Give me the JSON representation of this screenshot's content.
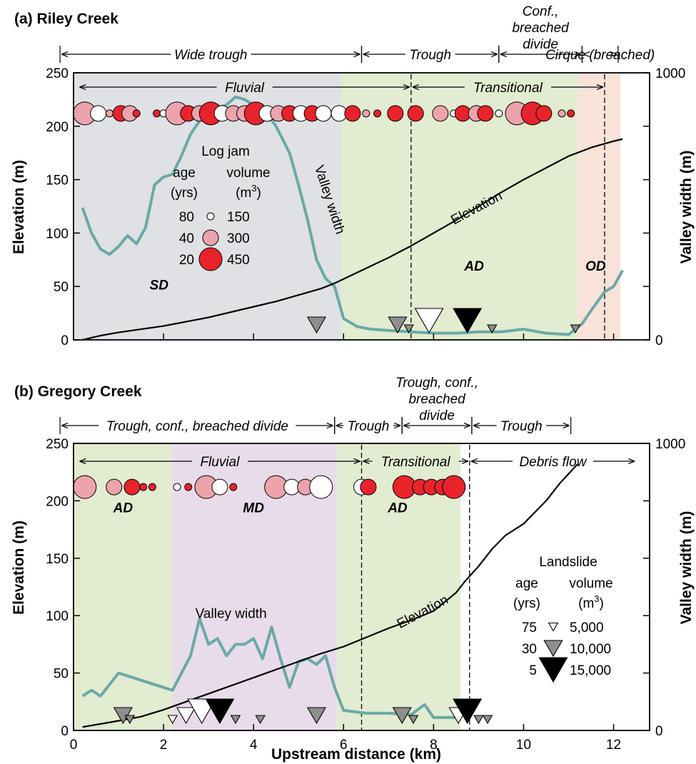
{
  "chart_data": [
    {
      "type": "line",
      "panel_label": "(a) Riley Creek",
      "xlabel": "Upstream distance (km)",
      "ylabel": "Elevation (m)",
      "y2label": "Valley width (m)",
      "xlim": [
        0,
        12.8
      ],
      "ylim": [
        0,
        250
      ],
      "y2lim": [
        0,
        1000
      ],
      "x_ticks": [
        0,
        2,
        4,
        6,
        8,
        10,
        12
      ],
      "y_ticks": [
        0,
        50,
        100,
        150,
        200,
        250
      ],
      "y2_ticks": [
        0,
        1000
      ],
      "zones": [
        {
          "label": "SD",
          "x0": 0,
          "x1": 5.95,
          "color": "#dfe1e4",
          "label_x": 1.9,
          "label_y": 47
        },
        {
          "label": "AD",
          "x0": 5.95,
          "x1": 11.2,
          "color": "#e2ecd0",
          "label_x": 8.9,
          "label_y": 65
        },
        {
          "label": "OD",
          "x0": 11.2,
          "x1": 12.15,
          "color": "#f9e2d8",
          "label_x": 11.6,
          "label_y": 65
        }
      ],
      "dashed_lines": [
        7.5,
        11.8
      ],
      "morphology_segments": [
        {
          "label": "Wide trough",
          "x0": -0.3,
          "x1": 6.4
        },
        {
          "label": "Trough",
          "x0": 6.4,
          "x1": 9.45
        },
        {
          "label": "Conf., breached divide",
          "x0": 9.45,
          "x1": 11.3
        },
        {
          "label": "Cirque (breached)",
          "x0": 11.3,
          "x1": 12.1
        }
      ],
      "process_segments": [
        {
          "label": "Fluvial",
          "x0": 0.1,
          "x1": 7.5
        },
        {
          "label": "Transitional",
          "x0": 7.5,
          "x1": 11.8
        }
      ],
      "series": [
        {
          "name": "Elevation",
          "axis": "left",
          "color": "#000000",
          "x": [
            0.2,
            0.6,
            1.0,
            1.5,
            2.0,
            2.5,
            3.0,
            3.5,
            4.0,
            4.5,
            5.0,
            5.5,
            5.8,
            6.0,
            6.5,
            7.0,
            7.5,
            8.0,
            8.5,
            9.0,
            9.5,
            10.0,
            10.5,
            11.0,
            11.5,
            12.0,
            12.2
          ],
          "y": [
            0,
            4,
            7,
            10,
            13,
            17,
            21,
            26,
            31,
            36,
            42,
            48,
            53,
            57,
            67,
            77,
            88,
            100,
            112,
            125,
            138,
            150,
            161,
            172,
            180,
            186,
            188
          ]
        },
        {
          "name": "Valley width",
          "axis": "right",
          "color": "#6aa9a8",
          "x": [
            0.2,
            0.4,
            0.6,
            0.8,
            1.0,
            1.2,
            1.4,
            1.6,
            1.8,
            2.0,
            2.2,
            2.4,
            2.6,
            2.8,
            3.0,
            3.2,
            3.4,
            3.6,
            3.8,
            4.0,
            4.2,
            4.5,
            4.8,
            5.0,
            5.2,
            5.4,
            5.6,
            5.8,
            6.0,
            6.3,
            6.6,
            7.0,
            7.5,
            8.0,
            8.5,
            9.0,
            9.5,
            10.0,
            10.5,
            11.0,
            11.3,
            11.5,
            11.8,
            12.0,
            12.2
          ],
          "y": [
            495,
            400,
            340,
            320,
            350,
            390,
            360,
            420,
            580,
            610,
            620,
            690,
            770,
            820,
            850,
            870,
            880,
            910,
            900,
            880,
            870,
            800,
            700,
            580,
            450,
            300,
            230,
            200,
            80,
            50,
            40,
            35,
            30,
            25,
            25,
            30,
            30,
            40,
            25,
            20,
            60,
            110,
            180,
            200,
            260
          ]
        }
      ],
      "log_jams": [
        {
          "x": 0.25,
          "age": 40,
          "volume": 450
        },
        {
          "x": 0.55,
          "age": 80,
          "volume": 300
        },
        {
          "x": 0.8,
          "age": 40,
          "volume": 150
        },
        {
          "x": 1.05,
          "age": 20,
          "volume": 300
        },
        {
          "x": 1.25,
          "age": 40,
          "volume": 300
        },
        {
          "x": 1.4,
          "age": 20,
          "volume": 150
        },
        {
          "x": 1.85,
          "age": 20,
          "volume": 150
        },
        {
          "x": 2.0,
          "age": 80,
          "volume": 150
        },
        {
          "x": 2.3,
          "age": 40,
          "volume": 450
        },
        {
          "x": 2.55,
          "age": 20,
          "volume": 300
        },
        {
          "x": 2.8,
          "age": 40,
          "volume": 300
        },
        {
          "x": 3.05,
          "age": 20,
          "volume": 450
        },
        {
          "x": 3.3,
          "age": 80,
          "volume": 300
        },
        {
          "x": 3.55,
          "age": 40,
          "volume": 300
        },
        {
          "x": 3.8,
          "age": 40,
          "volume": 300
        },
        {
          "x": 4.05,
          "age": 20,
          "volume": 450
        },
        {
          "x": 4.3,
          "age": 80,
          "volume": 300
        },
        {
          "x": 4.55,
          "age": 40,
          "volume": 300
        },
        {
          "x": 4.8,
          "age": 20,
          "volume": 300
        },
        {
          "x": 5.05,
          "age": 80,
          "volume": 300
        },
        {
          "x": 5.3,
          "age": 20,
          "volume": 300
        },
        {
          "x": 5.55,
          "age": 80,
          "volume": 300
        },
        {
          "x": 5.9,
          "age": 80,
          "volume": 300
        },
        {
          "x": 6.2,
          "age": 20,
          "volume": 300
        },
        {
          "x": 6.5,
          "age": 40,
          "volume": 150
        },
        {
          "x": 6.75,
          "age": 20,
          "volume": 150
        },
        {
          "x": 7.15,
          "age": 20,
          "volume": 300
        },
        {
          "x": 7.6,
          "age": 20,
          "volume": 300
        },
        {
          "x": 8.15,
          "age": 40,
          "volume": 300
        },
        {
          "x": 8.45,
          "age": 80,
          "volume": 150
        },
        {
          "x": 8.65,
          "age": 20,
          "volume": 300
        },
        {
          "x": 8.95,
          "age": 40,
          "volume": 300
        },
        {
          "x": 9.15,
          "age": 20,
          "volume": 300
        },
        {
          "x": 9.45,
          "age": 80,
          "volume": 150
        },
        {
          "x": 9.85,
          "age": 40,
          "volume": 450
        },
        {
          "x": 10.2,
          "age": 20,
          "volume": 450
        },
        {
          "x": 10.45,
          "age": 20,
          "volume": 300
        },
        {
          "x": 10.85,
          "age": 40,
          "volume": 150
        },
        {
          "x": 11.05,
          "age": 20,
          "volume": 150
        }
      ],
      "landslides": [
        {
          "x": 5.4,
          "age": 30,
          "volume": 10000
        },
        {
          "x": 7.2,
          "age": 30,
          "volume": 10000
        },
        {
          "x": 7.45,
          "age": 30,
          "volume": 5000
        },
        {
          "x": 7.9,
          "age": 75,
          "volume": 15000
        },
        {
          "x": 8.75,
          "age": 5,
          "volume": 15000
        },
        {
          "x": 9.3,
          "age": 30,
          "volume": 5000
        },
        {
          "x": 11.15,
          "age": 30,
          "volume": 5000
        }
      ],
      "curve_labels": [
        {
          "text": "Elevation",
          "x": 9.0,
          "y": 120,
          "angle": -28
        },
        {
          "text": "Valley width",
          "x": 5.6,
          "y": 130,
          "angle": 72
        }
      ],
      "legend": {
        "title_line1": "Log jam",
        "age_header": "age",
        "age_unit": "(yrs)",
        "volume_header": "volume",
        "volume_unit_base": "(m",
        "volume_unit_sup": "3",
        "volume_unit_end": ")",
        "rows": [
          {
            "age": "80",
            "volume": "150"
          },
          {
            "age": "40",
            "volume": "300"
          },
          {
            "age": "20",
            "volume": "450"
          }
        ],
        "position": "upper-left"
      }
    },
    {
      "type": "line",
      "panel_label": "(b) Gregory Creek",
      "xlabel": "Upstream distance (km)",
      "ylabel": "Elevation (m)",
      "y2label": "Valley width (m)",
      "xlim": [
        0,
        12.8
      ],
      "ylim": [
        0,
        250
      ],
      "y2lim": [
        0,
        1000
      ],
      "x_ticks": [
        0,
        2,
        4,
        6,
        8,
        10,
        12
      ],
      "y_ticks": [
        0,
        50,
        100,
        150,
        200,
        250
      ],
      "y2_ticks": [
        0,
        1000
      ],
      "zones": [
        {
          "label": "AD",
          "x0": 0,
          "x1": 2.2,
          "color": "#e2ecd0",
          "label_x": 1.1,
          "label_y": 190
        },
        {
          "label": "MD",
          "x0": 2.2,
          "x1": 5.85,
          "color": "#e9dcea",
          "label_x": 4.0,
          "label_y": 190
        },
        {
          "label": "AD",
          "x0": 5.85,
          "x1": 8.6,
          "color": "#e2ecd0",
          "label_x": 7.2,
          "label_y": 190
        }
      ],
      "dashed_lines": [
        6.4,
        8.8
      ],
      "morphology_segments": [
        {
          "label": "Trough, conf., breached divide",
          "x0": -0.3,
          "x1": 5.8
        },
        {
          "label": "Trough",
          "x0": 5.8,
          "x1": 7.3
        },
        {
          "label": "Trough, conf., breached divide",
          "x0": 7.3,
          "x1": 8.85
        },
        {
          "label": "Trough",
          "x0": 8.85,
          "x1": 11.05
        }
      ],
      "process_segments": [
        {
          "label": "Fluvial",
          "x0": 0.1,
          "x1": 6.4
        },
        {
          "label": "Transitional",
          "x0": 6.4,
          "x1": 8.8
        },
        {
          "label": "Debris flow",
          "x0": 8.8,
          "x1": 12.5
        }
      ],
      "series": [
        {
          "name": "Elevation",
          "axis": "left",
          "color": "#000000",
          "x": [
            0.2,
            0.8,
            1.5,
            2.0,
            2.5,
            3.0,
            3.5,
            4.0,
            4.5,
            5.0,
            5.5,
            6.0,
            6.5,
            7.0,
            7.5,
            8.0,
            8.5,
            8.7,
            9.0,
            9.3,
            9.6,
            10.0,
            10.5,
            10.8,
            11.2
          ],
          "y": [
            3,
            7,
            12,
            18,
            25,
            32,
            39,
            46,
            53,
            60,
            67,
            73,
            81,
            89,
            96,
            104,
            120,
            130,
            143,
            158,
            170,
            180,
            200,
            215,
            232
          ]
        },
        {
          "name": "Valley width",
          "axis": "right",
          "color": "#6aa9a8",
          "x": [
            0.2,
            0.4,
            0.6,
            0.8,
            1.0,
            1.2,
            1.4,
            1.6,
            1.8,
            2.0,
            2.2,
            2.4,
            2.6,
            2.8,
            3.0,
            3.2,
            3.4,
            3.6,
            3.8,
            4.0,
            4.2,
            4.4,
            4.6,
            4.8,
            5.0,
            5.2,
            5.4,
            5.6,
            5.8,
            6.0,
            6.5,
            7.0,
            7.5,
            7.8,
            8.0,
            8.5
          ],
          "y": [
            120,
            140,
            120,
            160,
            200,
            190,
            180,
            170,
            160,
            150,
            140,
            200,
            260,
            390,
            300,
            320,
            260,
            300,
            300,
            320,
            250,
            360,
            250,
            150,
            240,
            250,
            230,
            260,
            150,
            70,
            60,
            60,
            55,
            90,
            45,
            45
          ]
        }
      ],
      "log_jams": [
        {
          "x": 0.25,
          "age": 40,
          "volume": 450
        },
        {
          "x": 0.9,
          "age": 40,
          "volume": 300
        },
        {
          "x": 1.3,
          "age": 20,
          "volume": 300
        },
        {
          "x": 1.55,
          "age": 20,
          "volume": 150
        },
        {
          "x": 1.75,
          "age": 20,
          "volume": 150
        },
        {
          "x": 2.3,
          "age": 80,
          "volume": 150
        },
        {
          "x": 2.55,
          "age": 20,
          "volume": 150
        },
        {
          "x": 2.95,
          "age": 40,
          "volume": 450
        },
        {
          "x": 3.25,
          "age": 80,
          "volume": 300
        },
        {
          "x": 3.55,
          "age": 20,
          "volume": 150
        },
        {
          "x": 4.5,
          "age": 40,
          "volume": 450
        },
        {
          "x": 4.85,
          "age": 80,
          "volume": 300
        },
        {
          "x": 5.15,
          "age": 40,
          "volume": 300
        },
        {
          "x": 5.5,
          "age": 80,
          "volume": 450
        },
        {
          "x": 6.4,
          "age": 80,
          "volume": 300
        },
        {
          "x": 6.55,
          "age": 20,
          "volume": 300
        },
        {
          "x": 7.35,
          "age": 20,
          "volume": 450
        },
        {
          "x": 7.7,
          "age": 20,
          "volume": 300
        },
        {
          "x": 7.95,
          "age": 20,
          "volume": 300
        },
        {
          "x": 8.2,
          "age": 20,
          "volume": 300
        },
        {
          "x": 8.45,
          "age": 20,
          "volume": 450
        }
      ],
      "landslides": [
        {
          "x": 1.1,
          "age": 30,
          "volume": 10000
        },
        {
          "x": 1.25,
          "age": 30,
          "volume": 5000
        },
        {
          "x": 2.2,
          "age": 75,
          "volume": 5000
        },
        {
          "x": 2.5,
          "age": 75,
          "volume": 10000
        },
        {
          "x": 2.85,
          "age": 75,
          "volume": 15000
        },
        {
          "x": 3.25,
          "age": 5,
          "volume": 15000
        },
        {
          "x": 3.6,
          "age": 30,
          "volume": 5000
        },
        {
          "x": 4.15,
          "age": 30,
          "volume": 5000
        },
        {
          "x": 5.4,
          "age": 30,
          "volume": 10000
        },
        {
          "x": 7.3,
          "age": 30,
          "volume": 10000
        },
        {
          "x": 7.55,
          "age": 30,
          "volume": 5000
        },
        {
          "x": 8.55,
          "age": 75,
          "volume": 10000
        },
        {
          "x": 8.75,
          "age": 5,
          "volume": 15000
        },
        {
          "x": 9.0,
          "age": 30,
          "volume": 5000
        },
        {
          "x": 9.2,
          "age": 30,
          "volume": 5000
        }
      ],
      "curve_labels": [
        {
          "text": "Elevation",
          "x": 7.8,
          "y": 100,
          "angle": -28
        },
        {
          "text": "Valley width",
          "x": 3.5,
          "y": 98,
          "angle": 0
        }
      ],
      "legend": {
        "title_line1": "Landslide",
        "age_header": "age",
        "age_unit": "(yrs)",
        "volume_header": "volume",
        "volume_unit_base": "(m",
        "volume_unit_sup": "3",
        "volume_unit_end": ")",
        "rows": [
          {
            "age": "75",
            "volume": "5,000"
          },
          {
            "age": "30",
            "volume": "10,000"
          },
          {
            "age": "5",
            "volume": "15,000"
          }
        ],
        "position": "lower-right"
      }
    }
  ],
  "figure": {
    "colors": {
      "elevation": "#000000",
      "valley_width": "#6aa9a8",
      "jam_age_80": "#ffffff",
      "jam_age_40": "#eda3ab",
      "jam_age_20": "#e8232b",
      "landslide_age_75": "#ffffff",
      "landslide_age_30": "#8e8e8e",
      "landslide_age_5": "#000000"
    }
  }
}
